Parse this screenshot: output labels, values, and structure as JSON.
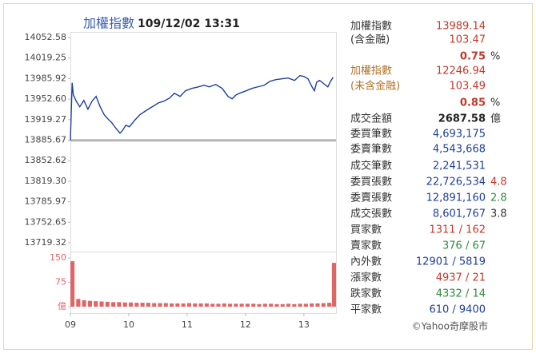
{
  "chart_data": [
    {
      "type": "line",
      "title": "加權指數",
      "subtitle": "109/12/02 13:31",
      "x": [
        9,
        9.03,
        9.05,
        9.1,
        9.16,
        9.23,
        9.3,
        9.37,
        9.44,
        9.51,
        9.58,
        9.64,
        9.71,
        9.78,
        9.85,
        9.89,
        9.95,
        10.01,
        10.1,
        10.19,
        10.29,
        10.4,
        10.51,
        10.6,
        10.7,
        10.78,
        10.88,
        10.97,
        11.08,
        11.19,
        11.29,
        11.38,
        11.49,
        11.6,
        11.7,
        11.77,
        11.84,
        11.9,
        12.01,
        12.11,
        12.21,
        12.32,
        12.42,
        12.52,
        12.62,
        12.73,
        12.84,
        12.93,
        13,
        13.07,
        13.14,
        13.18,
        13.22,
        13.27,
        13.34,
        13.41,
        13.45,
        13.5
      ],
      "series": [
        {
          "color": "#1f3f99",
          "values": [
            13885.67,
            13979.0,
            13959.6,
            13949.2,
            13940.1,
            13950.5,
            13936.2,
            13949.2,
            13957.0,
            13940.1,
            13927.2,
            13920.7,
            13914.2,
            13905.1,
            13897.3,
            13901.2,
            13910.3,
            13907.7,
            13918.1,
            13927.2,
            13933.6,
            13940.1,
            13946.6,
            13949.2,
            13954.4,
            13962.2,
            13957.0,
            13966.1,
            13970.0,
            13972.5,
            13975.1,
            13972.5,
            13976.4,
            13970.0,
            13957.0,
            13953.1,
            13959.6,
            13962.2,
            13966.1,
            13970.0,
            13972.5,
            13975.1,
            13981.6,
            13984.2,
            13985.5,
            13986.8,
            13982.9,
            13990.7,
            13989.4,
            13985.5,
            13972.5,
            13966.1,
            13980.3,
            13982.9,
            13977.7,
            13972.5,
            13980.3,
            13988.1
          ]
        }
      ],
      "reference": 13885.67,
      "reference_color": "#b5b5b5",
      "xlim": [
        9,
        13.55
      ],
      "ylim": [
        13719.32,
        14052.58
      ],
      "yticks": [
        14052.58,
        14019.25,
        13985.92,
        {
          "value": 13952.6,
          "label": "13952.60"
        },
        13919.27,
        13885.67,
        13852.62,
        {
          "value": 13819.3,
          "label": "13819.30"
        },
        13785.97,
        13752.65,
        13719.32
      ]
    },
    {
      "type": "bar",
      "color": "#e06666",
      "x": [
        9,
        9.1,
        9.2,
        9.3,
        9.4,
        9.5,
        9.6,
        9.7,
        9.8,
        9.9,
        10,
        10.1,
        10.2,
        10.3,
        10.4,
        10.5,
        10.6,
        10.7,
        10.8,
        10.9,
        11,
        11.1,
        11.2,
        11.3,
        11.4,
        11.5,
        11.6,
        11.7,
        11.8,
        11.9,
        12,
        12.1,
        12.2,
        12.3,
        12.4,
        12.5,
        12.6,
        12.7,
        12.8,
        12.9,
        13,
        13.1,
        13.2,
        13.3,
        13.4,
        13.5
      ],
      "values": [
        140,
        24,
        20,
        18,
        17,
        16,
        15,
        14,
        14,
        13,
        13,
        12,
        12,
        12,
        11,
        11,
        11,
        10,
        10,
        10,
        11,
        10,
        10,
        10,
        9,
        9,
        10,
        9,
        9,
        9,
        9,
        9,
        8,
        9,
        9,
        8,
        8,
        9,
        8,
        9,
        9,
        10,
        10,
        11,
        12,
        135
      ],
      "xlim": [
        9,
        13.55
      ],
      "ylim": [
        0,
        150
      ],
      "yticks": [
        150,
        75,
        {
          "value": 0,
          "label": "億"
        }
      ],
      "xticks": [
        {
          "value": 9,
          "label": "09"
        },
        10,
        11,
        12,
        13
      ]
    }
  ],
  "info": {
    "rows": [
      {
        "label": "加權指數",
        "value": "13989.14",
        "color": "#c0392b"
      },
      {
        "label": "(含金融)",
        "value": "103.47",
        "color": "#c0392b"
      },
      {
        "value": "0.75",
        "extra": "%",
        "color": "#c0392b"
      },
      {
        "label": "加權指數",
        "value": "12246.94",
        "color": "#c0392b",
        "label_color": "#b0722a"
      },
      {
        "label": "(未含金融)",
        "value": "103.49",
        "color": "#c0392b",
        "label_color": "#b0722a"
      },
      {
        "value": "0.85",
        "extra": "%",
        "color": "#c0392b"
      },
      {
        "label": "成交金額",
        "value": "2687.58",
        "extra": "億",
        "color": "#222"
      },
      {
        "label": "委買筆數",
        "value": "4,693,175",
        "color": "#1f3f99"
      },
      {
        "label": "委賣筆數",
        "value": "4,543,668",
        "color": "#1f3f99"
      },
      {
        "label": "成交筆數",
        "value": "2,241,531",
        "color": "#1f3f99"
      },
      {
        "label": "委買張數",
        "value": "22,726,534",
        "extra": "4.8",
        "color": "#1f3f99",
        "extra_color": "#c0392b"
      },
      {
        "label": "委賣張數",
        "value": "12,891,160",
        "extra": "2.8",
        "color": "#1f3f99",
        "extra_color": "#2e8b3a"
      },
      {
        "label": "成交張數",
        "value": "8,601,767",
        "extra": "3.8",
        "color": "#1f3f99",
        "extra_color": "#333"
      },
      {
        "label": "買家數",
        "value": "1311 / 162",
        "color": "#c0392b"
      },
      {
        "label": "賣家數",
        "value": "376 / 67",
        "color": "#2e8b3a"
      },
      {
        "label": "內外數",
        "value": "12901 / 5819",
        "color": "#1f3f99"
      },
      {
        "label": "漲家數",
        "value": "4937 / 21",
        "color": "#c0392b"
      },
      {
        "label": "跌家數",
        "value": "4332 / 14",
        "color": "#2e8b3a"
      },
      {
        "label": "平家數",
        "value": "610 / 9400",
        "color": "#1f3f99"
      }
    ],
    "footer": "©Yahoo奇摩股市"
  }
}
